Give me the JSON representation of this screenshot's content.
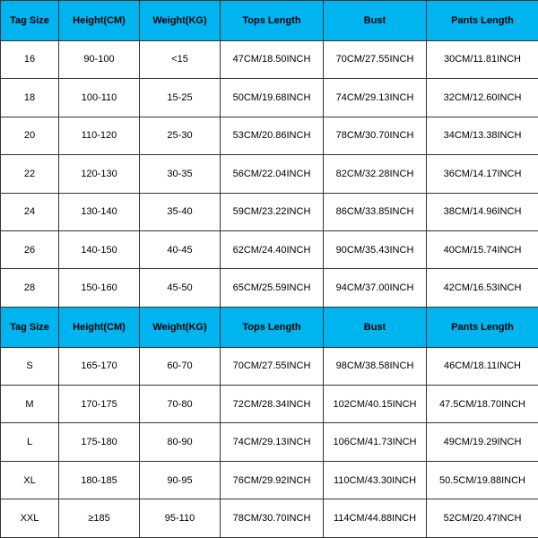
{
  "header_bg": "#00b4f0",
  "border_color": "#333333",
  "columns": [
    "Tag Size",
    "Height(CM)",
    "Weight(KG)",
    "Tops Length",
    "Bust",
    "Pants Length"
  ],
  "section1_rows": [
    [
      "16",
      "90-100",
      "<15",
      "47CM/18.50INCH",
      "70CM/27.55INCH",
      "30CM/11.81INCH"
    ],
    [
      "18",
      "100-110",
      "15-25",
      "50CM/19.68INCH",
      "74CM/29.13INCH",
      "32CM/12.60INCH"
    ],
    [
      "20",
      "110-120",
      "25-30",
      "53CM/20.86INCH",
      "78CM/30.70INCH",
      "34CM/13.38INCH"
    ],
    [
      "22",
      "120-130",
      "30-35",
      "56CM/22.04INCH",
      "82CM/32.28INCH",
      "36CM/14.17INCH"
    ],
    [
      "24",
      "130-140",
      "35-40",
      "59CM/23.22INCH",
      "86CM/33.85INCH",
      "38CM/14.96INCH"
    ],
    [
      "26",
      "140-150",
      "40-45",
      "62CM/24.40INCH",
      "90CM/35.43INCH",
      "40CM/15.74INCH"
    ],
    [
      "28",
      "150-160",
      "45-50",
      "65CM/25.59INCH",
      "94CM/37.00INCH",
      "42CM/16.53INCH"
    ]
  ],
  "section2_rows": [
    [
      "S",
      "165-170",
      "60-70",
      "70CM/27.55INCH",
      "98CM/38.58INCH",
      "46CM/18.11INCH"
    ],
    [
      "M",
      "170-175",
      "70-80",
      "72CM/28.34INCH",
      "102CM/40.15INCH",
      "47.5CM/18.70INCH"
    ],
    [
      "L",
      "175-180",
      "80-90",
      "74CM/29.13INCH",
      "106CM/41.73INCH",
      "49CM/19.29INCH"
    ],
    [
      "XL",
      "180-185",
      "90-95",
      "76CM/29.92INCH",
      "110CM/43.30INCH",
      "50.5CM/19.88INCH"
    ],
    [
      "XXL",
      "≥185",
      "95-110",
      "78CM/30.70INCH",
      "114CM/44.88INCH",
      "52CM/20.47INCH"
    ]
  ]
}
